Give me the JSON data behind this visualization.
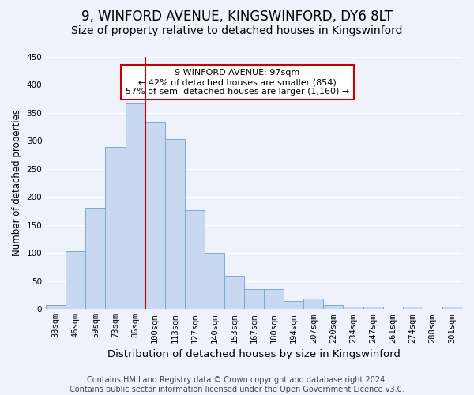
{
  "title": "9, WINFORD AVENUE, KINGSWINFORD, DY6 8LT",
  "subtitle": "Size of property relative to detached houses in Kingswinford",
  "xlabel": "Distribution of detached houses by size in Kingswinford",
  "ylabel": "Number of detached properties",
  "categories": [
    "33sqm",
    "46sqm",
    "59sqm",
    "73sqm",
    "86sqm",
    "100sqm",
    "113sqm",
    "127sqm",
    "140sqm",
    "153sqm",
    "167sqm",
    "180sqm",
    "194sqm",
    "207sqm",
    "220sqm",
    "234sqm",
    "247sqm",
    "261sqm",
    "274sqm",
    "288sqm",
    "301sqm"
  ],
  "values": [
    8,
    103,
    180,
    289,
    366,
    333,
    303,
    177,
    100,
    58,
    35,
    35,
    15,
    19,
    8,
    5,
    5,
    0,
    5,
    0,
    4
  ],
  "bar_color": "#c8d8f0",
  "bar_edge_color": "#7aaad0",
  "vline_x_idx": 5,
  "vline_color": "#cc0000",
  "ylim": [
    0,
    450
  ],
  "yticks": [
    0,
    50,
    100,
    150,
    200,
    250,
    300,
    350,
    400,
    450
  ],
  "annotation_title": "9 WINFORD AVENUE: 97sqm",
  "annotation_line1": "← 42% of detached houses are smaller (854)",
  "annotation_line2": "57% of semi-detached houses are larger (1,160) →",
  "annotation_box_facecolor": "#ffffff",
  "annotation_box_edgecolor": "#cc0000",
  "footer1": "Contains HM Land Registry data © Crown copyright and database right 2024.",
  "footer2": "Contains public sector information licensed under the Open Government Licence v3.0.",
  "background_color": "#eef2fa",
  "grid_color": "#ffffff",
  "title_fontsize": 12,
  "subtitle_fontsize": 10,
  "xlabel_fontsize": 9.5,
  "ylabel_fontsize": 8.5,
  "tick_fontsize": 7.5,
  "annotation_fontsize": 8,
  "footer_fontsize": 7
}
